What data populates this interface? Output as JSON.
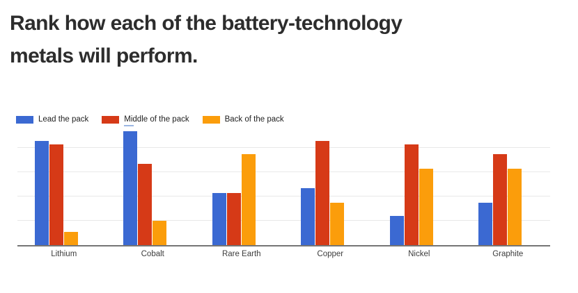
{
  "title": {
    "line1": "Rank how each of the battery-technology",
    "line2": "metals will perform."
  },
  "chart_data": {
    "type": "bar",
    "title": "Rank how each of the battery-technology metals will perform.",
    "categories": [
      "Lithium",
      "Cobalt",
      "Rare Earth",
      "Copper",
      "Nickel",
      "Graphite"
    ],
    "series": [
      {
        "name": "Lead the pack",
        "color": "#3b69d2",
        "values": [
          43,
          47,
          21.5,
          23.5,
          12,
          17.5
        ]
      },
      {
        "name": "Middle of the pack",
        "color": "#d63a17",
        "values": [
          41.5,
          33.5,
          21.5,
          43,
          41.5,
          37.5
        ]
      },
      {
        "name": "Back of the pack",
        "color": "#fb9d0b",
        "values": [
          5.5,
          10,
          37.5,
          17.5,
          31.5,
          31.5
        ]
      }
    ],
    "xlabel": "",
    "ylabel": "",
    "ylim": [
      0,
      50
    ],
    "gridline_step": 10,
    "grid": true,
    "y_axis_labels_visible": false,
    "legend_position": "top-left"
  },
  "colors": {
    "background": "#ffffff",
    "title_text": "#2d2d2d",
    "legend_text": "#212121",
    "axis_label_text": "#3c3c3c",
    "gridline": "#e8e8e8",
    "baseline": "#757575",
    "series_blue": "#3b69d2",
    "series_red": "#d63a17",
    "series_orange": "#fb9d0b"
  }
}
